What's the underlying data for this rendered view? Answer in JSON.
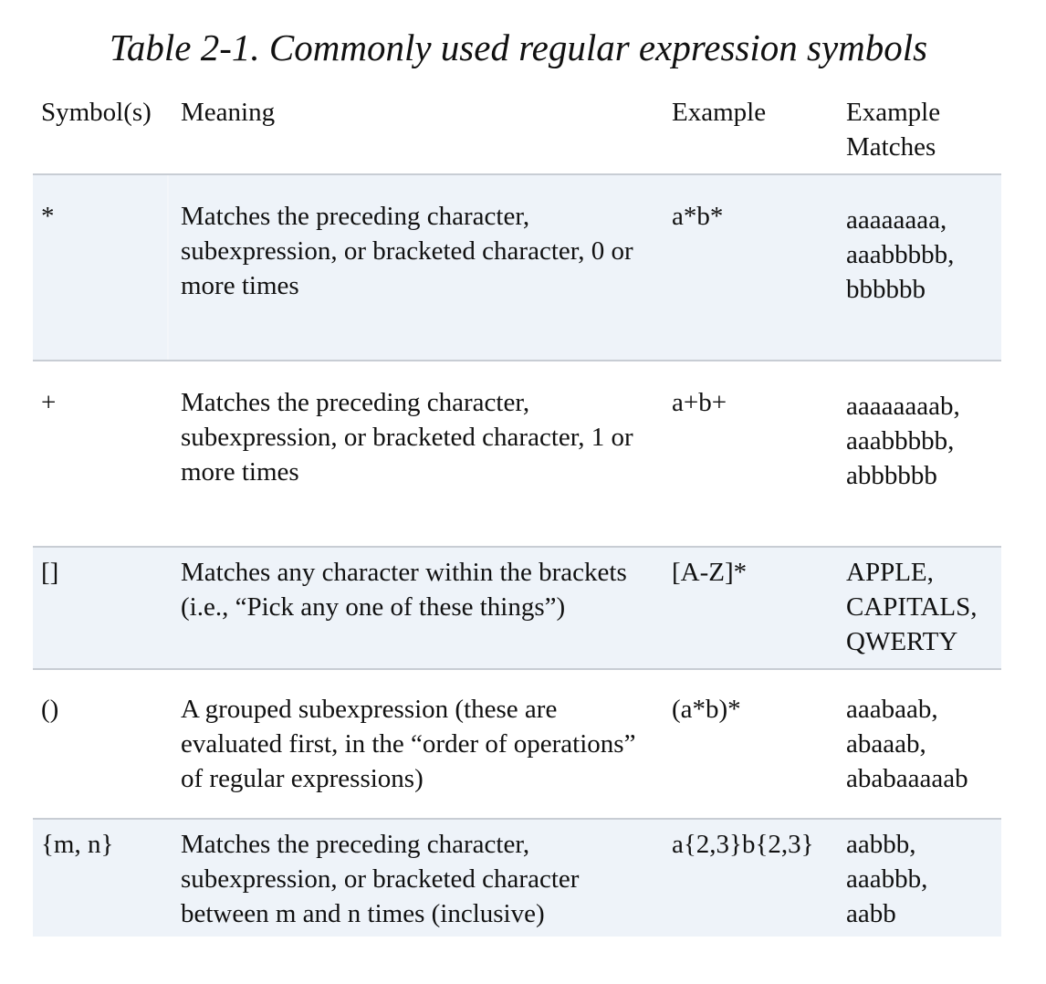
{
  "caption": "Table 2-1. Commonly used regular expression symbols",
  "headers": {
    "symbol": "Symbol(s)",
    "meaning": "Meaning",
    "example": "Example",
    "matches_line1": "Example",
    "matches_line2": "Matches"
  },
  "rows": [
    {
      "symbol": "*",
      "meaning": "Matches the preceding character, subexpression, or bracketed character, 0 or more times",
      "example": "a*b*",
      "matches": [
        "aaaaaaaa,",
        "aaabbbbb,",
        "bbbbbb"
      ]
    },
    {
      "symbol": "+",
      "meaning": "Matches the preceding character, subexpression, or bracketed character, 1 or more times",
      "example": "a+b+",
      "matches": [
        "aaaaaaaab,",
        "aaabbbbb,",
        "abbbbbb"
      ]
    },
    {
      "symbol": "[]",
      "meaning": "Matches any character within the brackets (i.e., “Pick any one of these things”)",
      "example": "[A-Z]*",
      "matches": [
        "APPLE,",
        "CAPITALS,",
        "QWERTY"
      ]
    },
    {
      "symbol": "()",
      "meaning": "A grouped subexpression (these are evaluated first, in the “order of operations” of regular expressions)",
      "example": "(a*b)*",
      "matches": [
        "aaabaab,",
        "abaaab,",
        "ababaaaaab"
      ]
    },
    {
      "symbol": "{m, n}",
      "meaning": "Matches the preceding character, subexpression, or bracketed character between m and n times (inclusive)",
      "example": "a{2,3}b{2,3}",
      "matches": [
        "aabbb,",
        "aaabbb,",
        "aabb"
      ]
    }
  ]
}
